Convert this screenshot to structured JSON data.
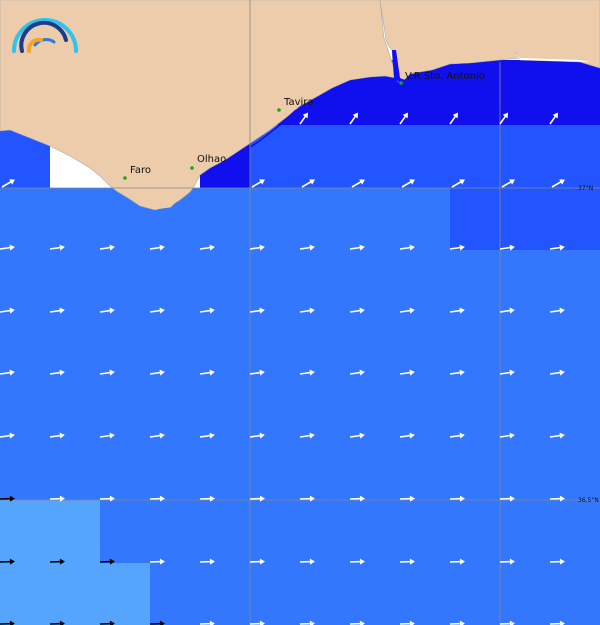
{
  "map": {
    "towns": [
      {
        "name": "Faro"
      },
      {
        "name": "Olhao"
      },
      {
        "name": "Tavira"
      },
      {
        "name": "V.R Sto. Antonio"
      }
    ],
    "latitude_labels": [
      "37°N",
      "36.5°N"
    ],
    "colors": {
      "land": "#ecccaa",
      "very_high": "#1010ee",
      "high": "#2255ff",
      "medium": "#3377ff",
      "low": "#55a5ff",
      "masked": "#ffffff",
      "arrow_light": "#ffffff",
      "arrow_dark": "#000000",
      "gridline": "#888888",
      "town_dot": "#11aa11"
    },
    "logo": "wave-arc-logo"
  }
}
